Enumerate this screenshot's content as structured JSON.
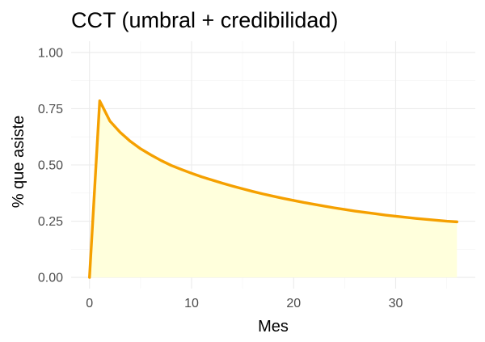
{
  "chart_data": {
    "type": "area",
    "title": "CCT (umbral + credibilidad)",
    "xlabel": "Mes",
    "ylabel": "% que asiste",
    "xlim": [
      -1.8,
      37.8
    ],
    "ylim": [
      -0.05,
      1.05
    ],
    "x_ticks": [
      0,
      10,
      20,
      30
    ],
    "x_tick_labels": [
      "0",
      "10",
      "20",
      "30"
    ],
    "y_ticks": [
      0.0,
      0.25,
      0.5,
      0.75,
      1.0
    ],
    "y_tick_labels": [
      "0.00",
      "0.25",
      "0.50",
      "0.75",
      "1.00"
    ],
    "grid": true,
    "legend": "none",
    "colors": {
      "line": "#f5a000",
      "fill": "#ffffdc",
      "grid": "#ebebeb"
    },
    "series": [
      {
        "x": [
          0,
          1,
          2,
          3,
          4,
          5,
          6,
          7,
          8,
          9,
          10,
          11,
          12,
          13,
          14,
          15,
          16,
          17,
          18,
          19,
          20,
          21,
          22,
          23,
          24,
          25,
          26,
          27,
          28,
          29,
          30,
          31,
          32,
          33,
          34,
          35,
          36
        ],
        "values": [
          0.0,
          0.785,
          0.695,
          0.645,
          0.605,
          0.572,
          0.545,
          0.52,
          0.498,
          0.48,
          0.463,
          0.447,
          0.433,
          0.419,
          0.406,
          0.394,
          0.382,
          0.371,
          0.361,
          0.351,
          0.342,
          0.333,
          0.325,
          0.317,
          0.309,
          0.302,
          0.295,
          0.289,
          0.283,
          0.277,
          0.272,
          0.267,
          0.262,
          0.258,
          0.254,
          0.25,
          0.247
        ]
      }
    ]
  }
}
